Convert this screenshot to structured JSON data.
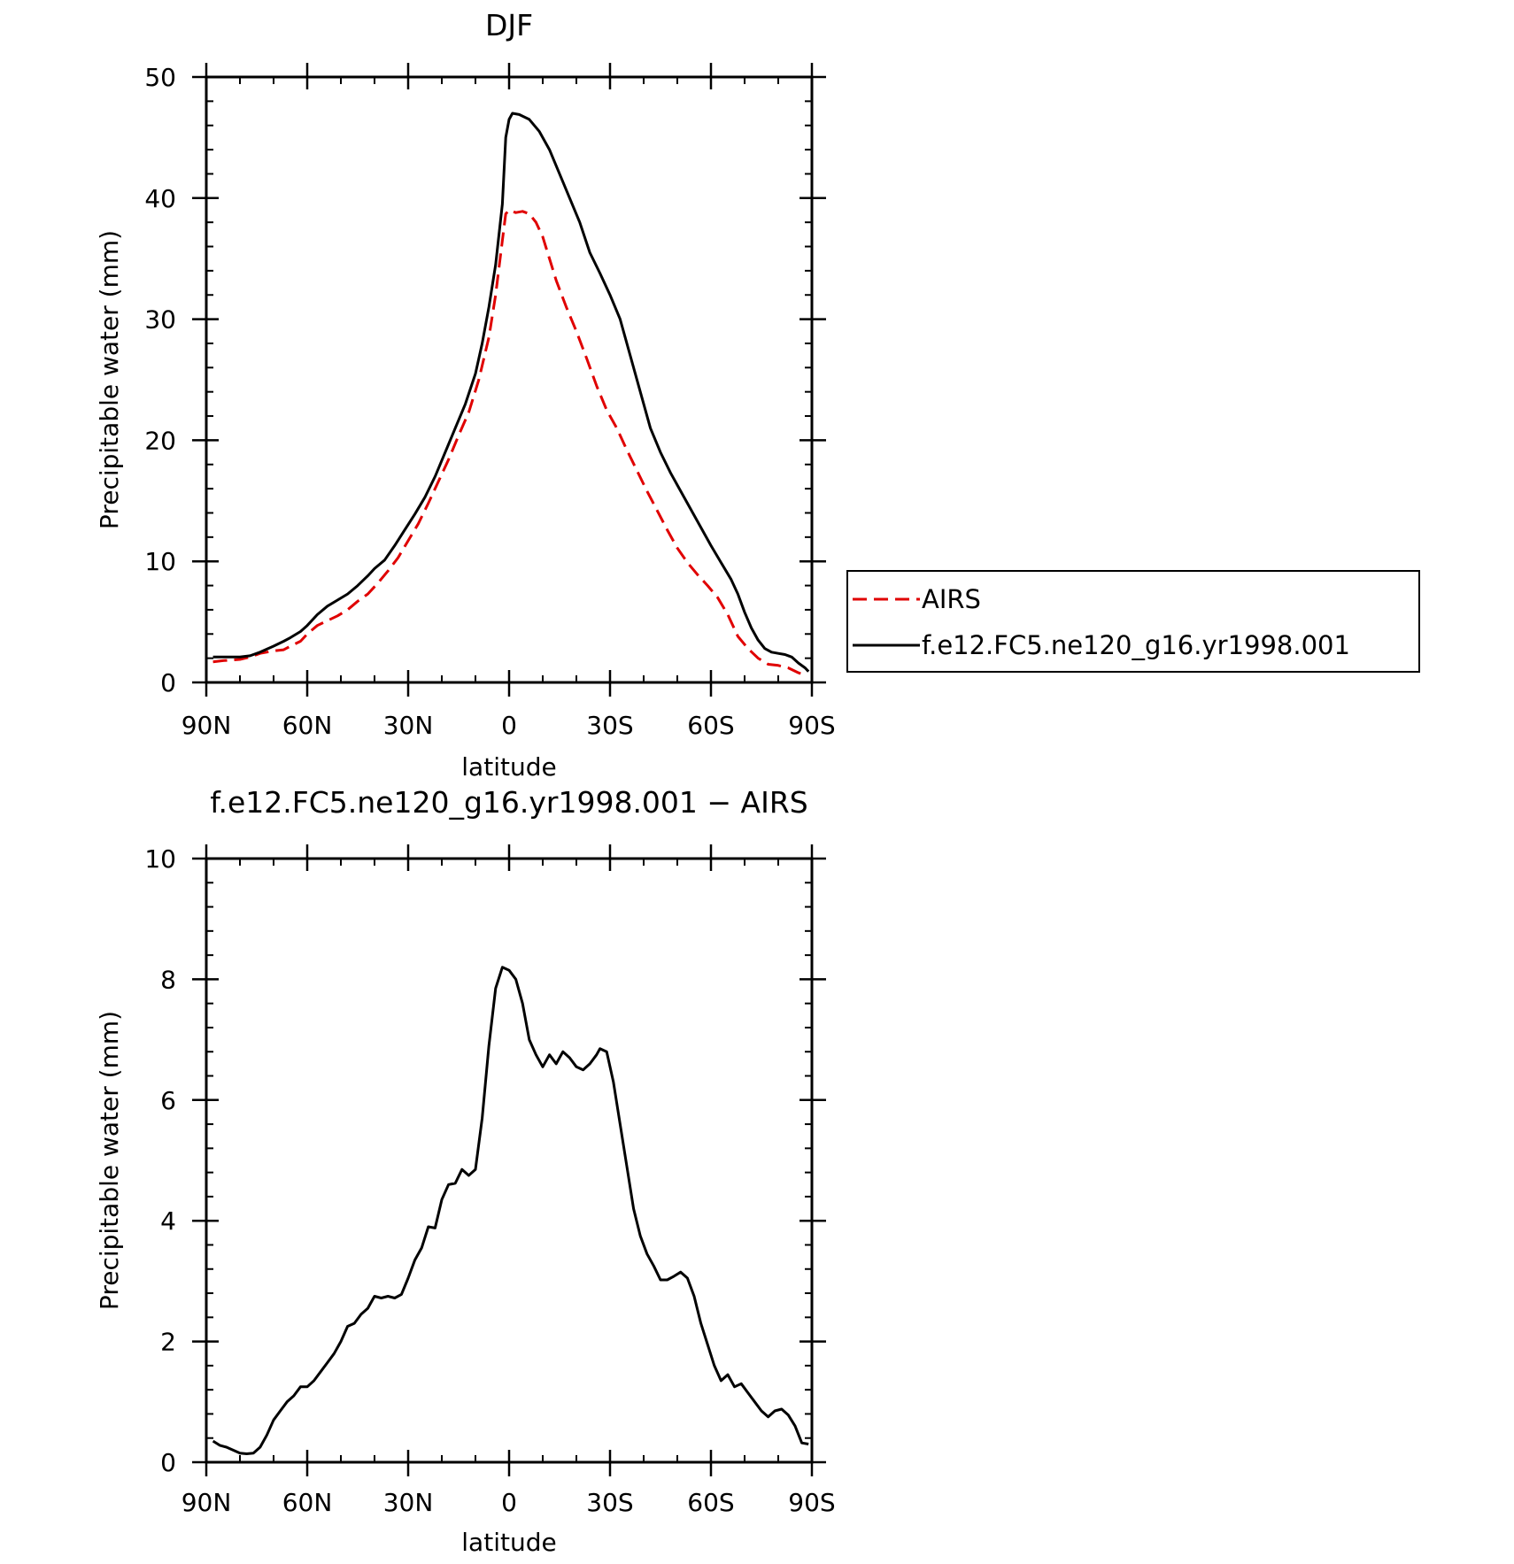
{
  "chart_data": [
    {
      "type": "line",
      "title": "DJF",
      "xlabel": "latitude",
      "ylabel": "Precipitable water (mm)",
      "xlim": [
        90,
        -90
      ],
      "ylim": [
        0,
        50
      ],
      "x_ticks": [
        90,
        60,
        30,
        0,
        -30,
        -60,
        -90
      ],
      "x_tick_labels": [
        "90N",
        "60N",
        "30N",
        "0",
        "30S",
        "60S",
        "90S"
      ],
      "y_ticks": [
        0,
        10,
        20,
        30,
        40,
        50
      ],
      "y_tick_labels": [
        "0",
        "10",
        "20",
        "30",
        "40",
        "50"
      ],
      "legend": "right",
      "series": [
        {
          "name": "AIRS",
          "color": "#e00000",
          "dash": "dashed",
          "points": [
            [
              88,
              1.7
            ],
            [
              85,
              1.8
            ],
            [
              80,
              1.9
            ],
            [
              77,
              2.1
            ],
            [
              74,
              2.4
            ],
            [
              70,
              2.6
            ],
            [
              67,
              2.7
            ],
            [
              65,
              3.0
            ],
            [
              62,
              3.4
            ],
            [
              60,
              4.0
            ],
            [
              57,
              4.7
            ],
            [
              54,
              5.1
            ],
            [
              51,
              5.5
            ],
            [
              48,
              6.0
            ],
            [
              45,
              6.7
            ],
            [
              42,
              7.3
            ],
            [
              39,
              8.2
            ],
            [
              36,
              9.2
            ],
            [
              33,
              10.3
            ],
            [
              30,
              11.7
            ],
            [
              27,
              13.1
            ],
            [
              24,
              14.8
            ],
            [
              21,
              16.6
            ],
            [
              18,
              18.4
            ],
            [
              15,
              20.4
            ],
            [
              12,
              22.3
            ],
            [
              9,
              25.0
            ],
            [
              6,
              28.5
            ],
            [
              4,
              32.0
            ],
            [
              2,
              36.5
            ],
            [
              1,
              38.7
            ],
            [
              0,
              39.0
            ],
            [
              -2,
              38.8
            ],
            [
              -4,
              38.9
            ],
            [
              -6,
              38.7
            ],
            [
              -8,
              38.0
            ],
            [
              -10,
              36.8
            ],
            [
              -12,
              35.0
            ],
            [
              -14,
              33.2
            ],
            [
              -17,
              31.0
            ],
            [
              -20,
              29.0
            ],
            [
              -23,
              26.8
            ],
            [
              -26,
              24.5
            ],
            [
              -29,
              22.5
            ],
            [
              -32,
              21.0
            ],
            [
              -35,
              19.2
            ],
            [
              -38,
              17.5
            ],
            [
              -41,
              15.8
            ],
            [
              -44,
              14.2
            ],
            [
              -47,
              12.6
            ],
            [
              -50,
              11.1
            ],
            [
              -53,
              9.9
            ],
            [
              -56,
              8.9
            ],
            [
              -59,
              8.0
            ],
            [
              -62,
              7.0
            ],
            [
              -65,
              5.6
            ],
            [
              -68,
              3.8
            ],
            [
              -71,
              2.8
            ],
            [
              -74,
              2.0
            ],
            [
              -77,
              1.5
            ],
            [
              -80,
              1.4
            ],
            [
              -83,
              1.2
            ],
            [
              -86,
              0.8
            ],
            [
              -88,
              0.6
            ]
          ]
        },
        {
          "name": "f.e12.FC5.ne120_g16.yr1998.001",
          "color": "#000000",
          "dash": "solid",
          "points": [
            [
              88,
              2.1
            ],
            [
              85,
              2.1
            ],
            [
              80,
              2.1
            ],
            [
              77,
              2.2
            ],
            [
              74,
              2.5
            ],
            [
              70,
              3.0
            ],
            [
              67,
              3.4
            ],
            [
              65,
              3.7
            ],
            [
              62,
              4.2
            ],
            [
              60,
              4.7
            ],
            [
              57,
              5.6
            ],
            [
              54,
              6.3
            ],
            [
              51,
              6.8
            ],
            [
              48,
              7.3
            ],
            [
              45,
              8.0
            ],
            [
              42,
              8.8
            ],
            [
              40,
              9.4
            ],
            [
              37,
              10.1
            ],
            [
              34,
              11.3
            ],
            [
              31,
              12.6
            ],
            [
              28,
              13.9
            ],
            [
              25,
              15.3
            ],
            [
              22,
              17.0
            ],
            [
              19,
              19.0
            ],
            [
              16,
              21.0
            ],
            [
              13,
              23.0
            ],
            [
              10,
              25.5
            ],
            [
              8,
              28.0
            ],
            [
              6,
              31.0
            ],
            [
              4,
              34.5
            ],
            [
              2,
              39.5
            ],
            [
              1,
              45.0
            ],
            [
              0,
              46.5
            ],
            [
              -1,
              47.0
            ],
            [
              -3,
              46.9
            ],
            [
              -6,
              46.5
            ],
            [
              -9,
              45.5
            ],
            [
              -12,
              44.0
            ],
            [
              -15,
              42.0
            ],
            [
              -18,
              40.0
            ],
            [
              -21,
              38.0
            ],
            [
              -24,
              35.5
            ],
            [
              -27,
              33.8
            ],
            [
              -30,
              32.0
            ],
            [
              -33,
              30.0
            ],
            [
              -36,
              27.0
            ],
            [
              -39,
              24.0
            ],
            [
              -42,
              21.0
            ],
            [
              -45,
              19.0
            ],
            [
              -48,
              17.3
            ],
            [
              -51,
              15.8
            ],
            [
              -54,
              14.3
            ],
            [
              -57,
              12.8
            ],
            [
              -60,
              11.3
            ],
            [
              -63,
              9.9
            ],
            [
              -66,
              8.5
            ],
            [
              -68,
              7.3
            ],
            [
              -70,
              5.8
            ],
            [
              -72,
              4.5
            ],
            [
              -74,
              3.5
            ],
            [
              -76,
              2.8
            ],
            [
              -78,
              2.5
            ],
            [
              -80,
              2.4
            ],
            [
              -82,
              2.3
            ],
            [
              -84,
              2.1
            ],
            [
              -86,
              1.6
            ],
            [
              -88,
              1.2
            ],
            [
              -89,
              0.9
            ]
          ]
        }
      ]
    },
    {
      "type": "line",
      "title": "f.e12.FC5.ne120_g16.yr1998.001 − AIRS",
      "xlabel": "latitude",
      "ylabel": "Precipitable water (mm)",
      "xlim": [
        90,
        -90
      ],
      "ylim": [
        0,
        10
      ],
      "x_ticks": [
        90,
        60,
        30,
        0,
        -30,
        -60,
        -90
      ],
      "x_tick_labels": [
        "90N",
        "60N",
        "30N",
        "0",
        "30S",
        "60S",
        "90S"
      ],
      "y_ticks": [
        0,
        2,
        4,
        6,
        8,
        10
      ],
      "y_tick_labels": [
        "0",
        "2",
        "4",
        "6",
        "8",
        "10"
      ],
      "series": [
        {
          "name": "",
          "color": "#000000",
          "dash": "solid",
          "points": [
            [
              88,
              0.35
            ],
            [
              86,
              0.28
            ],
            [
              84,
              0.25
            ],
            [
              82,
              0.2
            ],
            [
              80,
              0.15
            ],
            [
              78,
              0.14
            ],
            [
              76,
              0.15
            ],
            [
              74,
              0.25
            ],
            [
              72,
              0.45
            ],
            [
              70,
              0.7
            ],
            [
              68,
              0.85
            ],
            [
              66,
              1.0
            ],
            [
              64,
              1.1
            ],
            [
              62,
              1.25
            ],
            [
              60,
              1.25
            ],
            [
              58,
              1.35
            ],
            [
              56,
              1.5
            ],
            [
              54,
              1.65
            ],
            [
              52,
              1.8
            ],
            [
              50,
              2.0
            ],
            [
              48,
              2.25
            ],
            [
              46,
              2.3
            ],
            [
              44,
              2.45
            ],
            [
              42,
              2.55
            ],
            [
              40,
              2.75
            ],
            [
              38,
              2.72
            ],
            [
              36,
              2.75
            ],
            [
              34,
              2.72
            ],
            [
              32,
              2.78
            ],
            [
              30,
              3.05
            ],
            [
              28,
              3.35
            ],
            [
              26,
              3.55
            ],
            [
              24,
              3.9
            ],
            [
              22,
              3.88
            ],
            [
              20,
              4.35
            ],
            [
              18,
              4.6
            ],
            [
              16,
              4.62
            ],
            [
              14,
              4.85
            ],
            [
              12,
              4.75
            ],
            [
              10,
              4.85
            ],
            [
              8,
              5.7
            ],
            [
              6,
              6.9
            ],
            [
              4,
              7.85
            ],
            [
              2,
              8.2
            ],
            [
              0,
              8.15
            ],
            [
              -2,
              8.0
            ],
            [
              -4,
              7.6
            ],
            [
              -6,
              7.0
            ],
            [
              -8,
              6.75
            ],
            [
              -10,
              6.55
            ],
            [
              -12,
              6.75
            ],
            [
              -14,
              6.6
            ],
            [
              -16,
              6.8
            ],
            [
              -18,
              6.7
            ],
            [
              -20,
              6.55
            ],
            [
              -22,
              6.5
            ],
            [
              -24,
              6.6
            ],
            [
              -26,
              6.75
            ],
            [
              -27,
              6.85
            ],
            [
              -29,
              6.8
            ],
            [
              -31,
              6.3
            ],
            [
              -33,
              5.6
            ],
            [
              -35,
              4.9
            ],
            [
              -37,
              4.2
            ],
            [
              -39,
              3.75
            ],
            [
              -41,
              3.45
            ],
            [
              -43,
              3.25
            ],
            [
              -45,
              3.02
            ],
            [
              -47,
              3.02
            ],
            [
              -49,
              3.08
            ],
            [
              -51,
              3.15
            ],
            [
              -53,
              3.05
            ],
            [
              -55,
              2.75
            ],
            [
              -57,
              2.3
            ],
            [
              -59,
              1.95
            ],
            [
              -61,
              1.6
            ],
            [
              -63,
              1.35
            ],
            [
              -65,
              1.45
            ],
            [
              -67,
              1.25
            ],
            [
              -69,
              1.3
            ],
            [
              -71,
              1.15
            ],
            [
              -73,
              1.0
            ],
            [
              -75,
              0.85
            ],
            [
              -77,
              0.75
            ],
            [
              -79,
              0.85
            ],
            [
              -81,
              0.88
            ],
            [
              -83,
              0.78
            ],
            [
              -85,
              0.6
            ],
            [
              -87,
              0.32
            ],
            [
              -89,
              0.3
            ]
          ]
        }
      ]
    }
  ]
}
